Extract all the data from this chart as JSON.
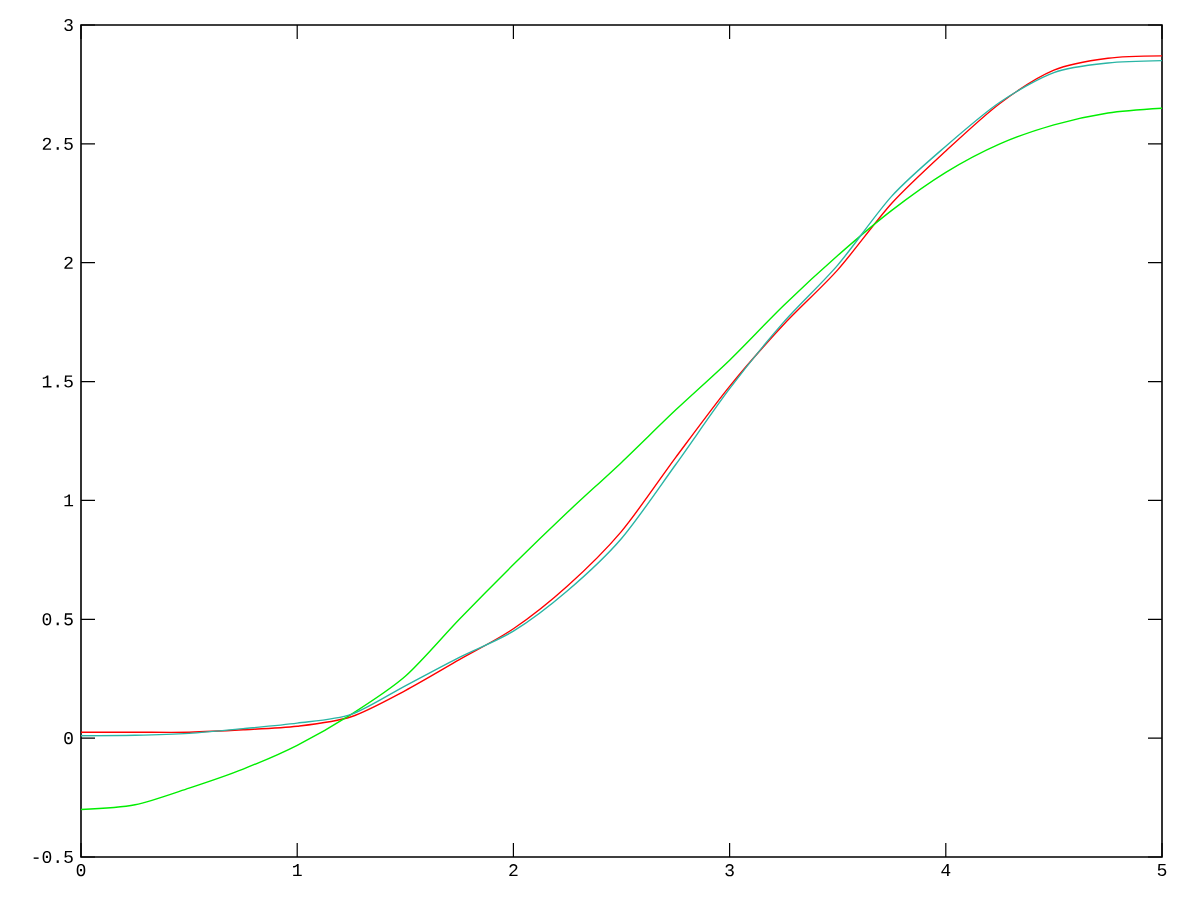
{
  "chart_data": {
    "type": "line",
    "x": [
      0,
      0.25,
      0.5,
      0.75,
      1,
      1.25,
      1.5,
      1.75,
      2,
      2.25,
      2.5,
      2.75,
      3,
      3.25,
      3.5,
      3.75,
      4,
      4.25,
      4.5,
      4.75,
      5
    ],
    "series": [
      {
        "color": "#ff0000",
        "values": [
          0.025,
          0.025,
          0.025,
          0.035,
          0.05,
          0.09,
          0.2,
          0.33,
          0.46,
          0.64,
          0.87,
          1.18,
          1.48,
          1.74,
          1.97,
          2.25,
          2.47,
          2.67,
          2.81,
          2.86,
          2.87
        ]
      },
      {
        "color": "#00ee00",
        "values": [
          -0.3,
          -0.28,
          -0.21,
          -0.13,
          -0.03,
          0.1,
          0.26,
          0.5,
          0.73,
          0.95,
          1.16,
          1.38,
          1.59,
          1.82,
          2.03,
          2.22,
          2.38,
          2.5,
          2.58,
          2.63,
          2.65
        ]
      },
      {
        "color": "#2ab5a5",
        "values": [
          0.01,
          0.012,
          0.02,
          0.04,
          0.063,
          0.1,
          0.22,
          0.34,
          0.45,
          0.62,
          0.84,
          1.15,
          1.47,
          1.75,
          1.99,
          2.28,
          2.49,
          2.675,
          2.8,
          2.84,
          2.85
        ]
      }
    ],
    "xlim": [
      0,
      5
    ],
    "ylim": [
      -0.5,
      3
    ],
    "xticks": [
      0,
      1,
      2,
      3,
      4,
      5
    ],
    "yticks": [
      -0.5,
      0,
      0.5,
      1,
      1.5,
      2,
      2.5,
      3
    ],
    "grid": false,
    "marker": "none",
    "line_style": "solid"
  }
}
